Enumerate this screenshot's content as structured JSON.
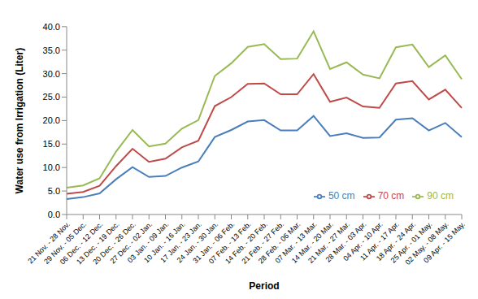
{
  "chart_data": {
    "type": "line",
    "x_label": "Period",
    "y_label": "Water use from Irrigation (Liter)",
    "categories": [
      "21 Nov. - 28 Nov.",
      "29 Nov. - 05 Dec.",
      "06 Dec. - 12 Dec.",
      "13 Dec. - 19 Dec.",
      "20 Dec. - 26 Dec.",
      "27 Dec. - 02 Jan.",
      "03 Jan. - 09 Jan.",
      "10 Jan. - 16 Jan.",
      "17 Jan. - 23 Jan.",
      "24 Jan. - 30 Jan.",
      "31 Jan. - 06 Feb.",
      "07 Feb. - 13 Feb.",
      "14 Feb. - 20 Feb.",
      "21 Feb. - 27 Feb.",
      "28 Feb. - 06 Mar.",
      "07 Mar. - 13 Mar.",
      "14 Mar. - 20 Mar.",
      "21 Mar. - 27 Mar.",
      "28 Mar. - 03 Apr.",
      "04 Apr. - 10 Apr.",
      "11 Apr. - 17 Apr.",
      "18 Apr. - 24 Apr.",
      "25 Apr. - 01 May.",
      "02 May. - 08 May.",
      "09 Apr. - 15 May."
    ],
    "series": [
      {
        "name": "50 cm",
        "color": "#4a7ebb",
        "marker": "none",
        "values": [
          3.3,
          3.7,
          4.5,
          7.5,
          10.1,
          8.0,
          8.2,
          10.0,
          11.3,
          16.5,
          18.0,
          19.8,
          20.1,
          17.9,
          17.9,
          21.0,
          16.7,
          17.3,
          16.3,
          16.4,
          20.2,
          20.5,
          17.9,
          19.5,
          16.5
        ]
      },
      {
        "name": "70 cm",
        "color": "#be4b48",
        "marker": "none",
        "values": [
          4.4,
          4.8,
          6.1,
          10.3,
          14.0,
          11.2,
          11.9,
          14.3,
          15.7,
          23.1,
          25.0,
          27.8,
          27.9,
          25.6,
          25.6,
          29.9,
          24.0,
          24.9,
          23.0,
          22.7,
          27.9,
          28.4,
          24.5,
          26.6,
          22.7
        ]
      },
      {
        "name": "90 cm",
        "color": "#98b954",
        "marker": "none",
        "values": [
          5.7,
          6.2,
          7.7,
          13.4,
          18.0,
          14.5,
          15.1,
          18.3,
          20.1,
          29.5,
          32.2,
          35.7,
          36.3,
          33.1,
          33.2,
          39.0,
          31.0,
          32.4,
          29.8,
          29.0,
          35.6,
          36.2,
          31.4,
          33.9,
          28.8
        ]
      }
    ],
    "ylim": [
      0,
      40
    ],
    "yticks": [
      {
        "value": 0,
        "label": "0.0"
      },
      {
        "value": 5,
        "label": "5.0"
      },
      {
        "value": 10,
        "label": "10.0"
      },
      {
        "value": 15,
        "label": "15.0"
      },
      {
        "value": 20,
        "label": "20.0"
      },
      {
        "value": 25,
        "label": "25.0"
      },
      {
        "value": 30,
        "label": "30.0"
      },
      {
        "value": 35,
        "label": "35.0"
      },
      {
        "value": 40,
        "label": "40.0"
      }
    ],
    "grid": false,
    "legend": "lower right"
  }
}
